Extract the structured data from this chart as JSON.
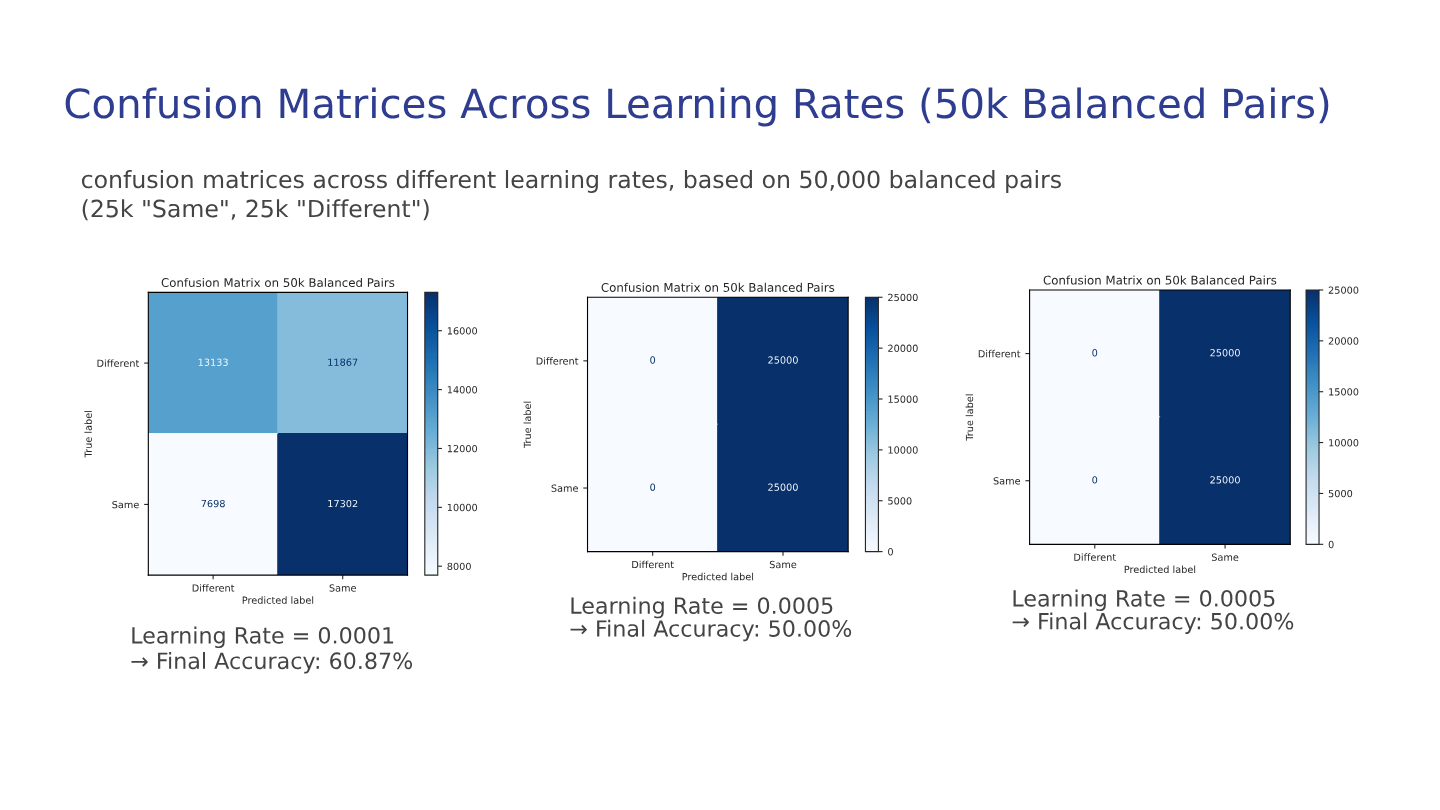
{
  "chart_data": [
    {
      "type": "other",
      "title": "Confusion Matrices Across Learning Rates (50k Balanced Pairs)",
      "subtitle": "confusion matrices across different learning rates, based on 50,000 balanced pairs\n(25k \"Same\", 25k \"Different\")"
    },
    {
      "type": "heatmap",
      "title": "Confusion Matrix on 50k Balanced Pairs",
      "xlabel": "Predicted label",
      "ylabel": "True label",
      "categories": [
        "Different",
        "Same"
      ],
      "y_categories": [
        "Different",
        "Same"
      ],
      "data_labels": true,
      "cells": [
        [
          13133,
          11867
        ],
        [
          7698,
          17302
        ]
      ],
      "clim": [
        7698,
        17302
      ],
      "cticks": [
        8000,
        10000,
        12000,
        14000,
        16000
      ],
      "annotations": [
        "Learning Rate = 0.0001",
        "→ Final Accuracy: 60.87%"
      ]
    },
    {
      "type": "heatmap",
      "title": "Confusion Matrix on 50k Balanced Pairs",
      "xlabel": "Predicted label",
      "ylabel": "True label",
      "categories": [
        "Different",
        "Same"
      ],
      "y_categories": [
        "Different",
        "Same"
      ],
      "data_labels": true,
      "cells": [
        [
          0,
          25000
        ],
        [
          0,
          25000
        ]
      ],
      "clim": [
        0,
        25000
      ],
      "cticks": [
        0,
        5000,
        10000,
        15000,
        20000,
        25000
      ],
      "annotations": [
        "Learning Rate = 0.0005",
        "→ Final Accuracy: 50.00%"
      ]
    },
    {
      "type": "heatmap",
      "title": "Confusion Matrix on 50k Balanced Pairs",
      "xlabel": "Predicted label",
      "ylabel": "True label",
      "categories": [
        "Different",
        "Same"
      ],
      "y_categories": [
        "Different",
        "Same"
      ],
      "data_labels": true,
      "cells": [
        [
          0,
          25000
        ],
        [
          0,
          25000
        ]
      ],
      "clim": [
        0,
        25000
      ],
      "cticks": [
        0,
        5000,
        10000,
        15000,
        20000,
        25000
      ],
      "annotations": [
        "Learning Rate = 0.0005",
        "→ Final Accuracy: 50.00%"
      ]
    }
  ]
}
